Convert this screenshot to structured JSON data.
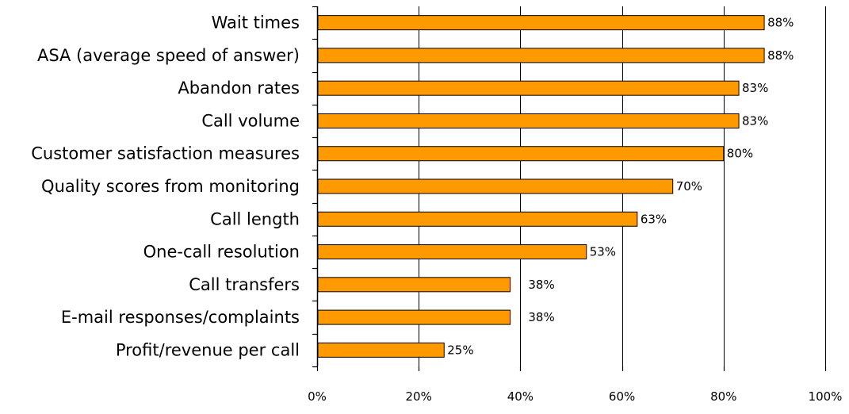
{
  "chart_data": {
    "type": "bar",
    "orientation": "horizontal",
    "categories": [
      "Wait times",
      "ASA (average speed of answer)",
      "Abandon rates",
      "Call volume",
      "Customer satisfaction measures",
      "Quality scores from monitoring",
      "Call length",
      "One-call resolution",
      "Call transfers",
      "E-mail responses/complaints",
      "Profit/revenue per call"
    ],
    "values": [
      88,
      88,
      83,
      83,
      80,
      70,
      63,
      53,
      38,
      38,
      25
    ],
    "data_labels": [
      "88%",
      "88%",
      "83%",
      "83%",
      "80%",
      "70%",
      "63%",
      "53%",
      "38%",
      "38%",
      "25%"
    ],
    "xlim": [
      0,
      100
    ],
    "x_ticks": [
      0,
      20,
      40,
      60,
      80,
      100
    ],
    "x_tick_labels": [
      "0%",
      "20%",
      "40%",
      "60%",
      "80%",
      "100%"
    ],
    "grid": "vertical",
    "legend": "none",
    "title": "",
    "xlabel": "",
    "ylabel": "",
    "colors": {
      "bar_fill": "#ff9900",
      "bar_stroke": "#000000",
      "grid": "#000000",
      "background": "#ffffff"
    }
  }
}
